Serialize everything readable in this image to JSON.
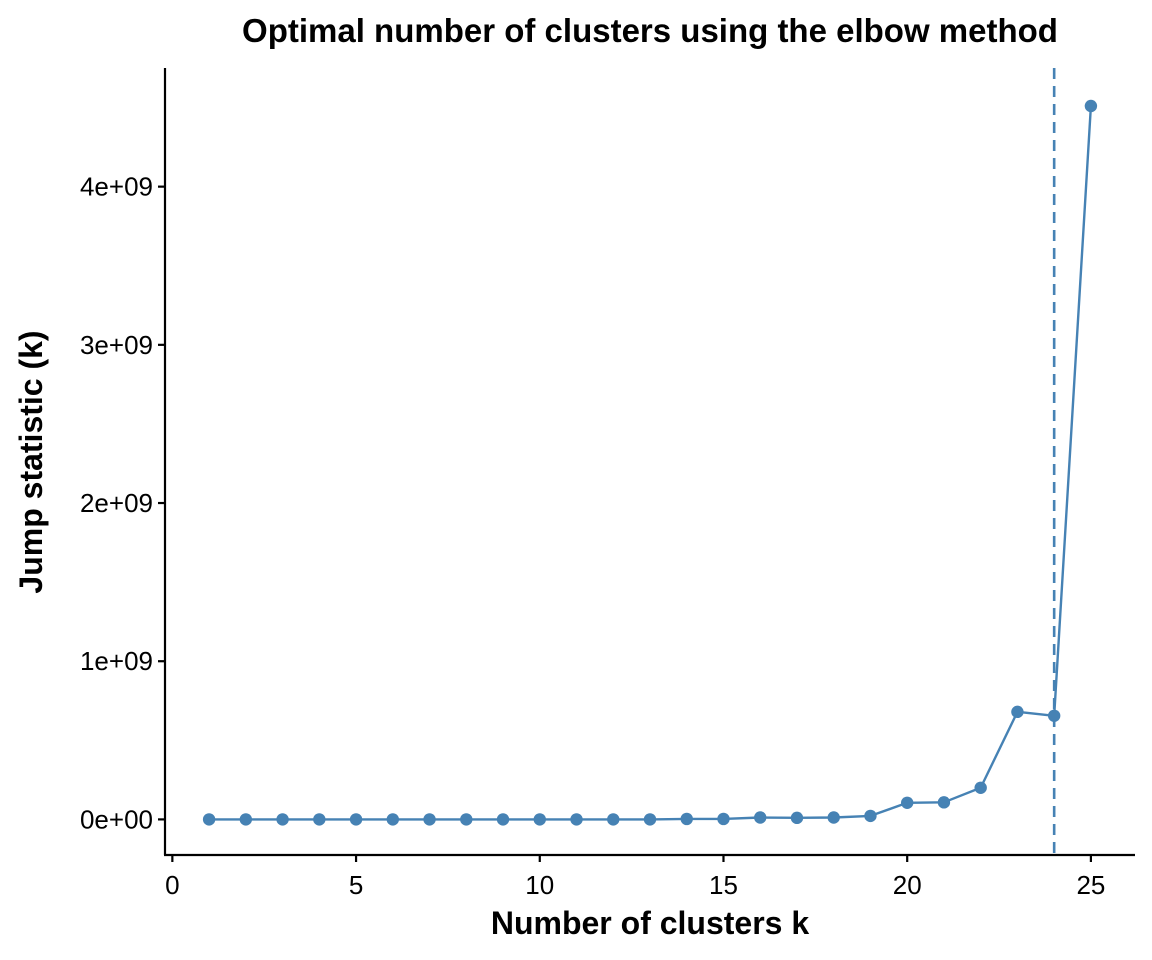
{
  "chart_data": {
    "type": "line",
    "title": "Optimal number of clusters using the elbow method",
    "xlabel": "Number of clusters k",
    "ylabel": "Jump statistic (k)",
    "xlim": [
      -0.2,
      26.2
    ],
    "ylim": [
      -225000000.0,
      4750000000.0
    ],
    "x_ticks": [
      0,
      5,
      10,
      15,
      20,
      25
    ],
    "x_tick_labels": [
      "0",
      "5",
      "10",
      "15",
      "20",
      "25"
    ],
    "y_ticks": [
      0,
      1000000000,
      2000000000,
      3000000000,
      4000000000
    ],
    "y_tick_labels": [
      "0e+00",
      "1e+09",
      "2e+09",
      "3e+09",
      "4e+09"
    ],
    "grid": false,
    "legend": "none",
    "color": "#4682B4",
    "series": [
      {
        "x": [
          1,
          2,
          3,
          4,
          5,
          6,
          7,
          8,
          9,
          10,
          11,
          12,
          13,
          14,
          15,
          16,
          17,
          18,
          19,
          20,
          21,
          22,
          23,
          24,
          25
        ],
        "y": [
          0,
          0,
          0,
          0,
          0,
          0,
          0,
          0,
          0,
          0,
          0,
          0,
          0,
          3000000,
          3000000,
          12000000,
          10000000,
          12000000,
          22000000,
          105000000,
          108000000,
          200000000,
          680000000,
          655000000,
          4510000000
        ]
      }
    ],
    "vline": {
      "x": 24,
      "style": "dashed"
    }
  }
}
